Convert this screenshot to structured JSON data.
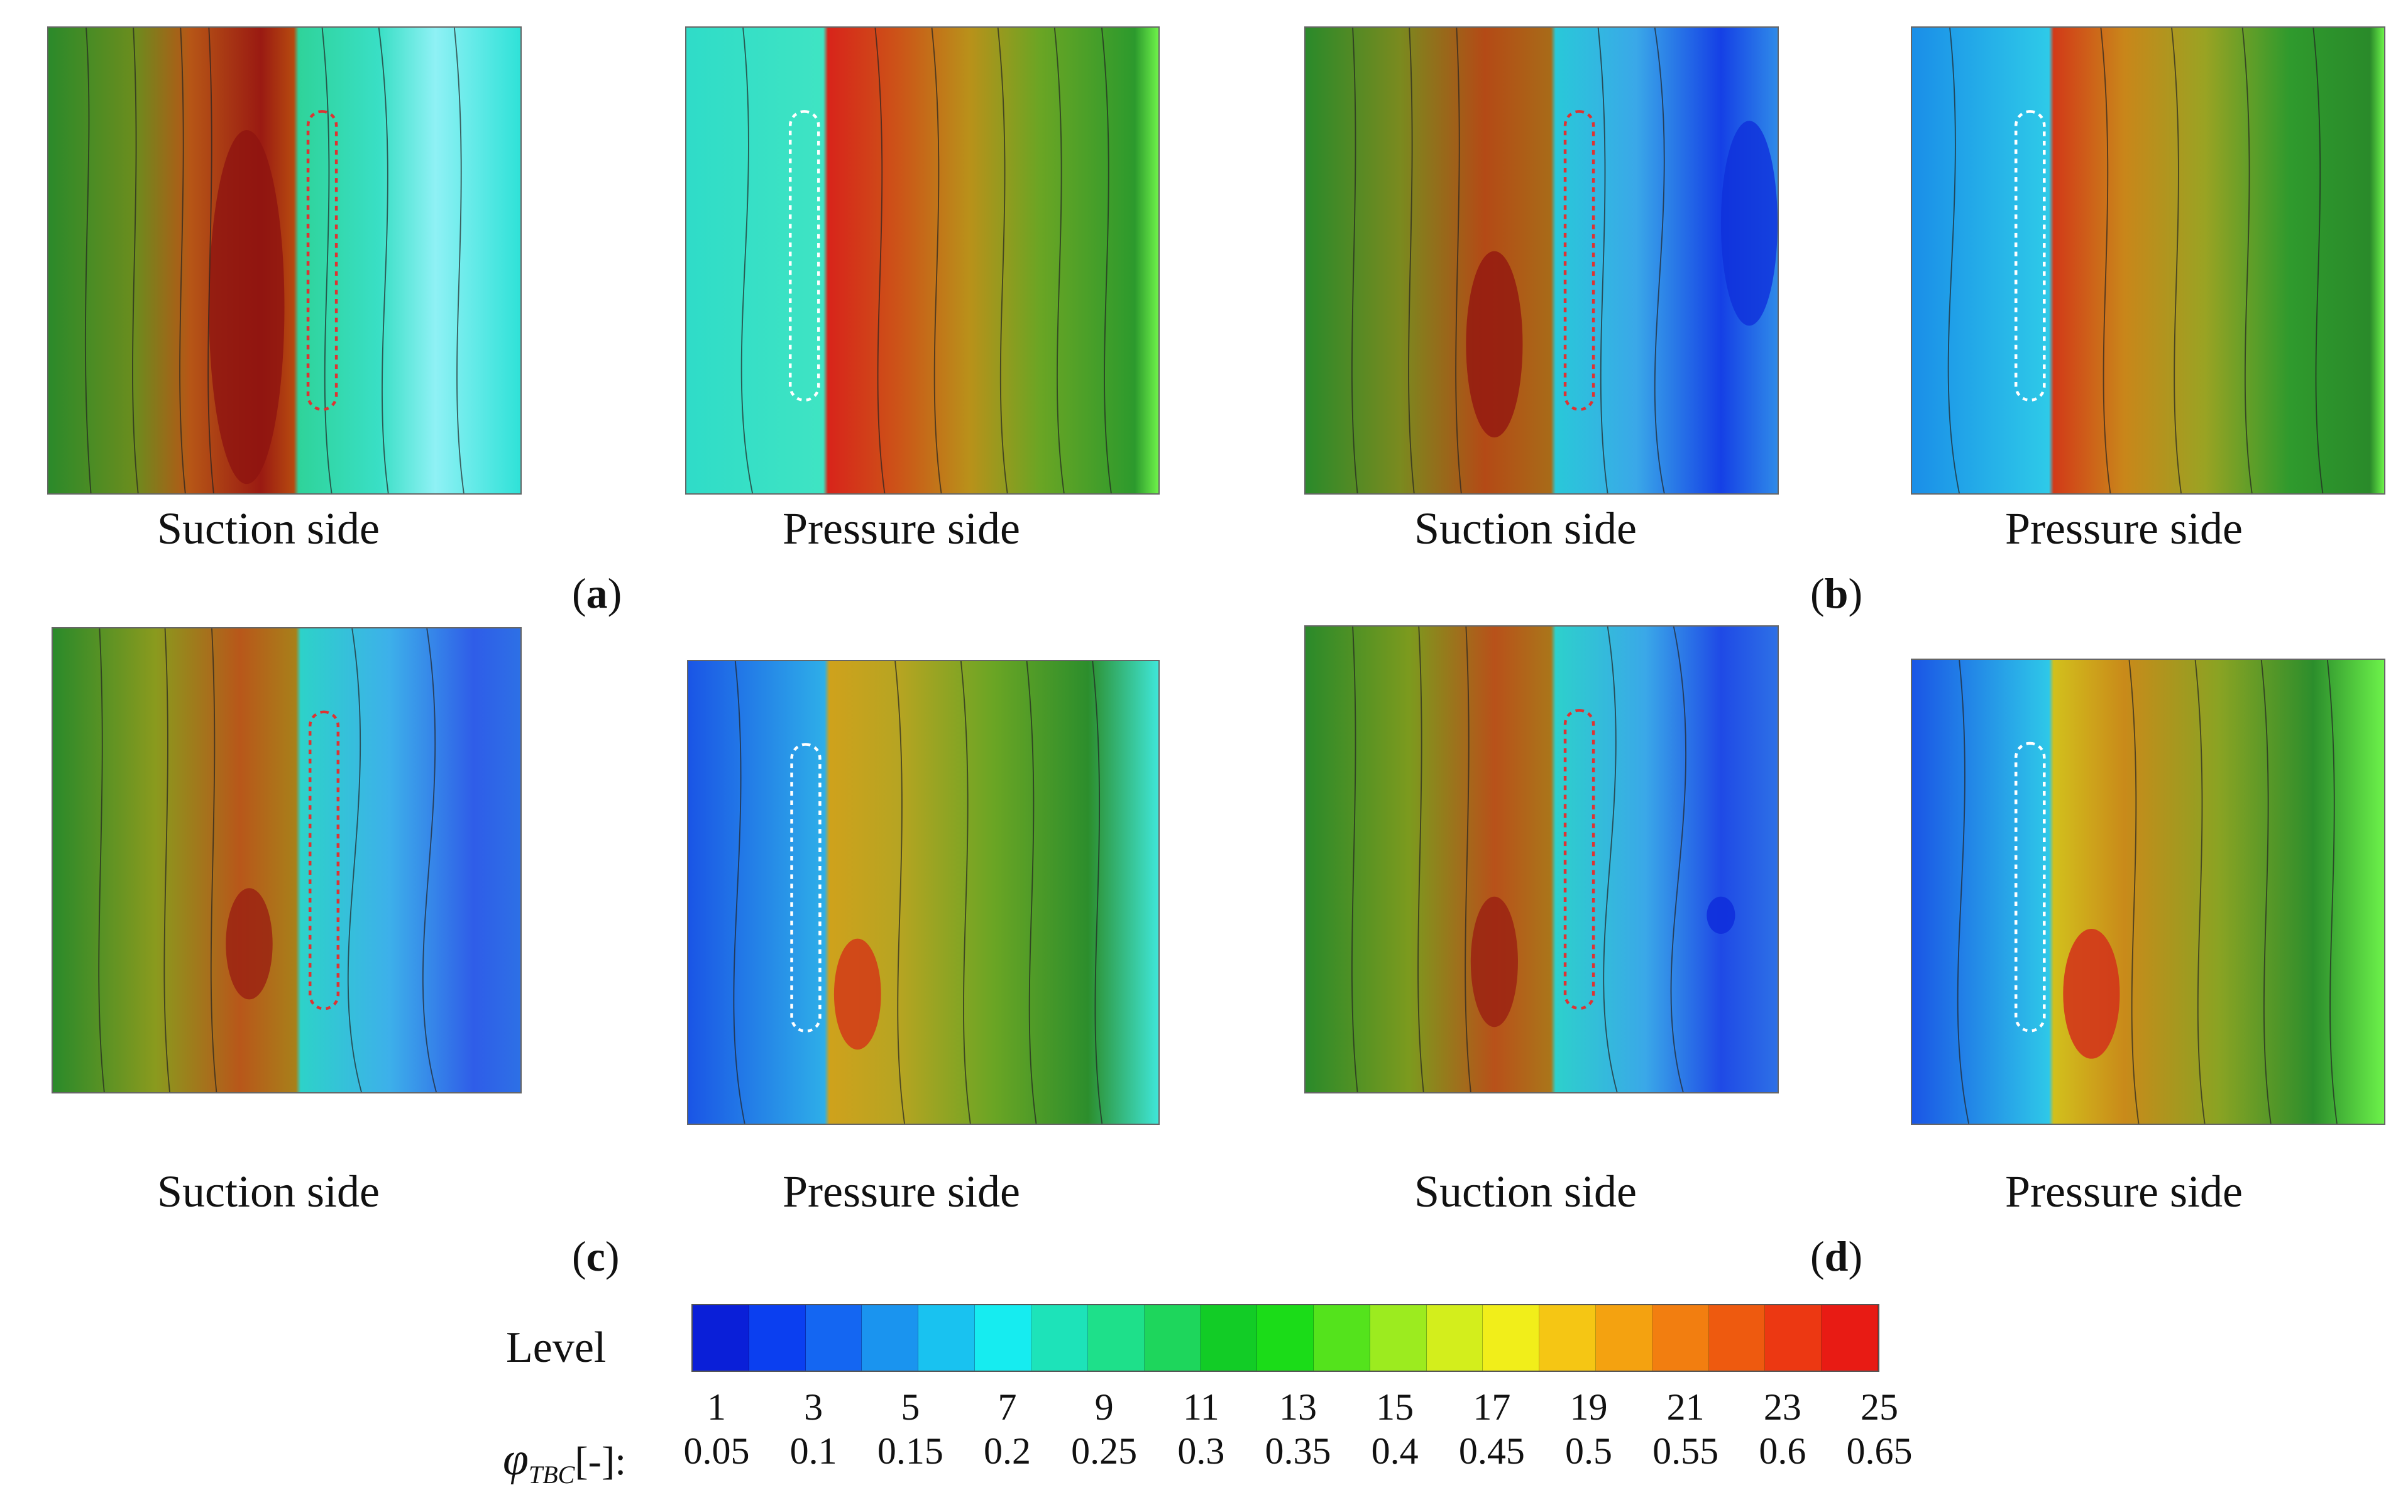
{
  "panels": [
    {
      "id": "a",
      "suction_label": "Suction side",
      "pressure_label": "Pressure side",
      "subfig": "a"
    },
    {
      "id": "b",
      "suction_label": "Suction side",
      "pressure_label": "Pressure side",
      "subfig": "b"
    },
    {
      "id": "c",
      "suction_label": "Suction side",
      "pressure_label": "Pressure side",
      "subfig": "c"
    },
    {
      "id": "d",
      "suction_label": "Suction side",
      "pressure_label": "Pressure side",
      "subfig": "d"
    }
  ],
  "legend": {
    "title": "Level",
    "phi_symbol": "φ",
    "phi_subscript": "TBC",
    "phi_unit": "[-]:",
    "levels": [
      "1",
      "3",
      "5",
      "7",
      "9",
      "11",
      "13",
      "15",
      "17",
      "19",
      "21",
      "23",
      "25"
    ],
    "values": [
      "0.05",
      "0.1",
      "0.15",
      "0.2",
      "0.25",
      "0.3",
      "0.35",
      "0.4",
      "0.45",
      "0.5",
      "0.55",
      "0.6",
      "0.65"
    ],
    "colors": [
      "#0a1fd8",
      "#0b3ff0",
      "#1466f2",
      "#1a94ef",
      "#19c2f0",
      "#16ecf0",
      "#1de3b9",
      "#1ee08a",
      "#1ed65c",
      "#12cc26",
      "#1bdc18",
      "#54e31c",
      "#9ceb1f",
      "#d3ee1c",
      "#f1ee1a",
      "#f5c614",
      "#f4a210",
      "#f27e10",
      "#ee5a0f",
      "#ec3812",
      "#e81b14"
    ]
  }
}
